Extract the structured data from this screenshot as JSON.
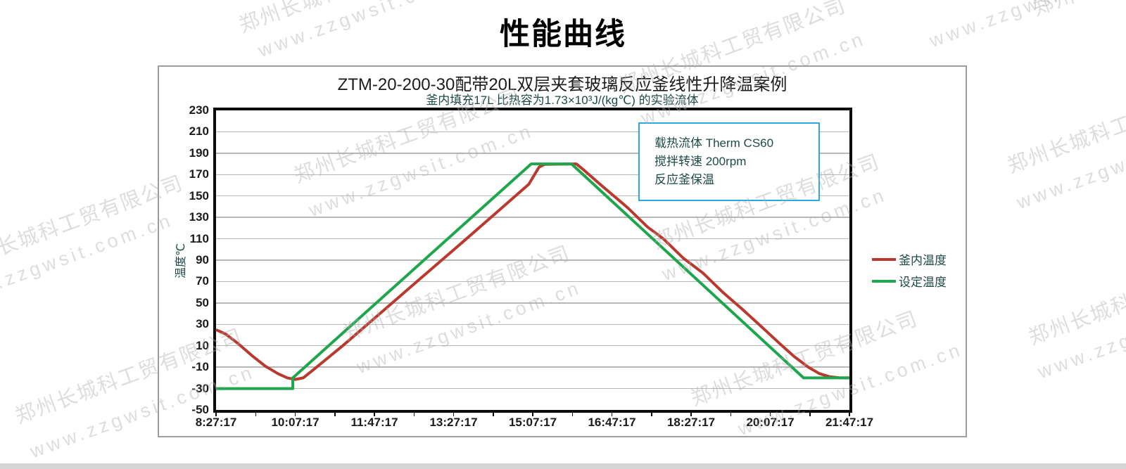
{
  "page": {
    "title": "性能曲线"
  },
  "watermark": {
    "company": "郑州长城科工贸有限公司",
    "url": "www.zzgwsit.com.cn"
  },
  "chart_data": {
    "type": "line",
    "title": "ZTM-20-200-30配带20L双层夹套玻璃反应釜线性升降温案例",
    "subtitle": "釜内填充17L 比热容为1.73×10³J/(kg℃) 的实验流体",
    "ylabel": "温度℃",
    "ylim": [
      -50,
      230
    ],
    "y_tick_labels": [
      230,
      210,
      190,
      170,
      150,
      130,
      110,
      90,
      70,
      50,
      30,
      10,
      -10,
      -30,
      -50
    ],
    "x_tick_labels": [
      "8:27:17",
      "10:07:17",
      "11:47:17",
      "13:27:17",
      "15:07:17",
      "16:47:17",
      "18:27:17",
      "20:07:17",
      "21:47:17"
    ],
    "x_range_minutes": [
      0,
      800
    ],
    "grid": "horizontal-only",
    "legend_position": "right-outside",
    "annotation_box": {
      "border_color": "#29a8e2",
      "lines": [
        "载热流体 Therm CS60",
        "搅拌转速 200rpm",
        "反应釜保温"
      ]
    },
    "series": [
      {
        "name": "釜内温度",
        "color": "#b9392e",
        "points": [
          [
            0,
            25
          ],
          [
            12,
            21
          ],
          [
            28,
            12
          ],
          [
            45,
            1
          ],
          [
            62,
            -9
          ],
          [
            78,
            -16
          ],
          [
            90,
            -20
          ],
          [
            100,
            -21.5
          ],
          [
            110,
            -20
          ],
          [
            122,
            -13
          ],
          [
            160,
            10
          ],
          [
            210,
            42
          ],
          [
            260,
            74
          ],
          [
            310,
            106
          ],
          [
            355,
            135
          ],
          [
            395,
            161
          ],
          [
            408,
            177
          ],
          [
            415,
            179.5
          ],
          [
            455,
            180
          ],
          [
            465,
            174
          ],
          [
            485,
            161
          ],
          [
            520,
            139
          ],
          [
            545,
            121
          ],
          [
            565,
            110
          ],
          [
            590,
            92
          ],
          [
            615,
            78
          ],
          [
            640,
            60
          ],
          [
            665,
            44
          ],
          [
            690,
            27
          ],
          [
            712,
            12
          ],
          [
            730,
            0
          ],
          [
            748,
            -10
          ],
          [
            762,
            -16
          ],
          [
            775,
            -19
          ],
          [
            788,
            -20
          ],
          [
            800,
            -20
          ]
        ]
      },
      {
        "name": "设定温度",
        "color": "#1ea64d",
        "points": [
          [
            0,
            -30
          ],
          [
            97,
            -30
          ],
          [
            97,
            -20
          ],
          [
            398,
            180
          ],
          [
            449,
            180
          ],
          [
            742,
            -20
          ],
          [
            800,
            -20
          ]
        ]
      }
    ]
  }
}
